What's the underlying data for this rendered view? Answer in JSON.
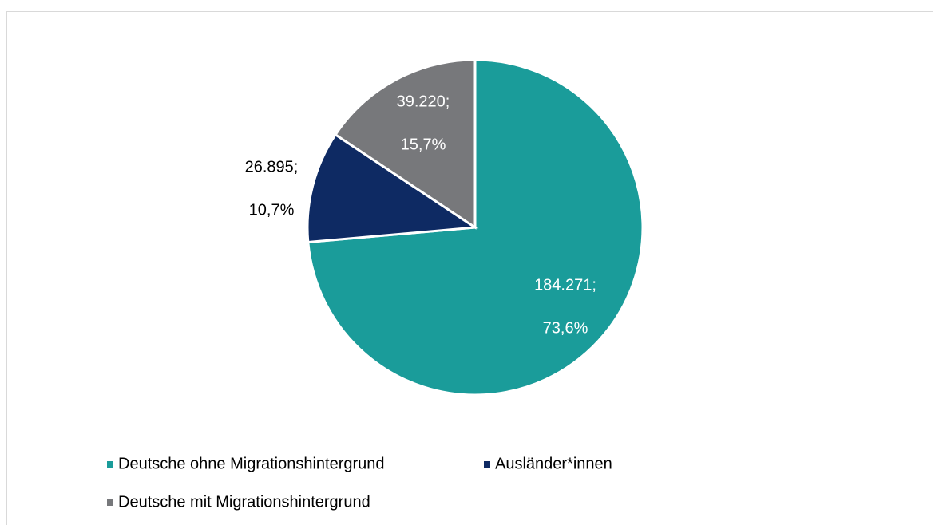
{
  "chart_data": {
    "type": "pie",
    "categories": [
      "Deutsche ohne Migrationshintergrund",
      "Ausländer*innen",
      "Deutsche mit Migrationshintergrund"
    ],
    "values": [
      184271,
      26895,
      39220
    ],
    "value_labels": [
      "184.271;",
      "26.895;",
      "39.220;"
    ],
    "percent_labels": [
      "73,6%",
      "10,7%",
      "15,7%"
    ],
    "colors": [
      "#1a9c9a",
      "#0e2a63",
      "#77787b"
    ],
    "label_colors": [
      "#ffffff",
      "#000000",
      "#ffffff"
    ]
  }
}
